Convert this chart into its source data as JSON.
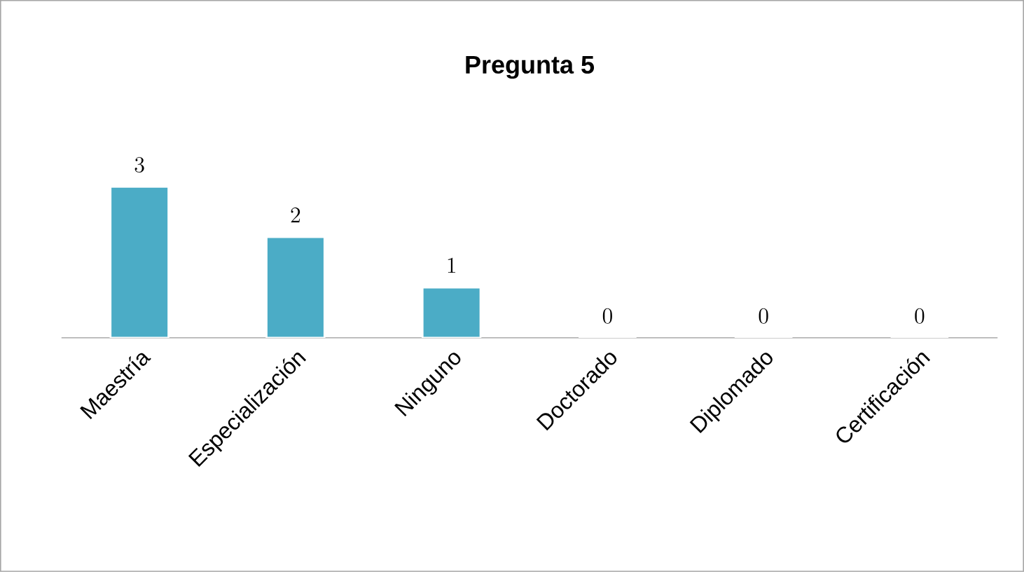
{
  "chart_data": {
    "type": "bar",
    "title": "Pregunta 5",
    "categories": [
      "Maestría",
      "Especialización",
      "Ninguno",
      "Doctorado",
      "Diplomado",
      "Certificación"
    ],
    "values": [
      3,
      2,
      1,
      0,
      0,
      0
    ],
    "color": "#4bacc6",
    "data_labels": true
  }
}
